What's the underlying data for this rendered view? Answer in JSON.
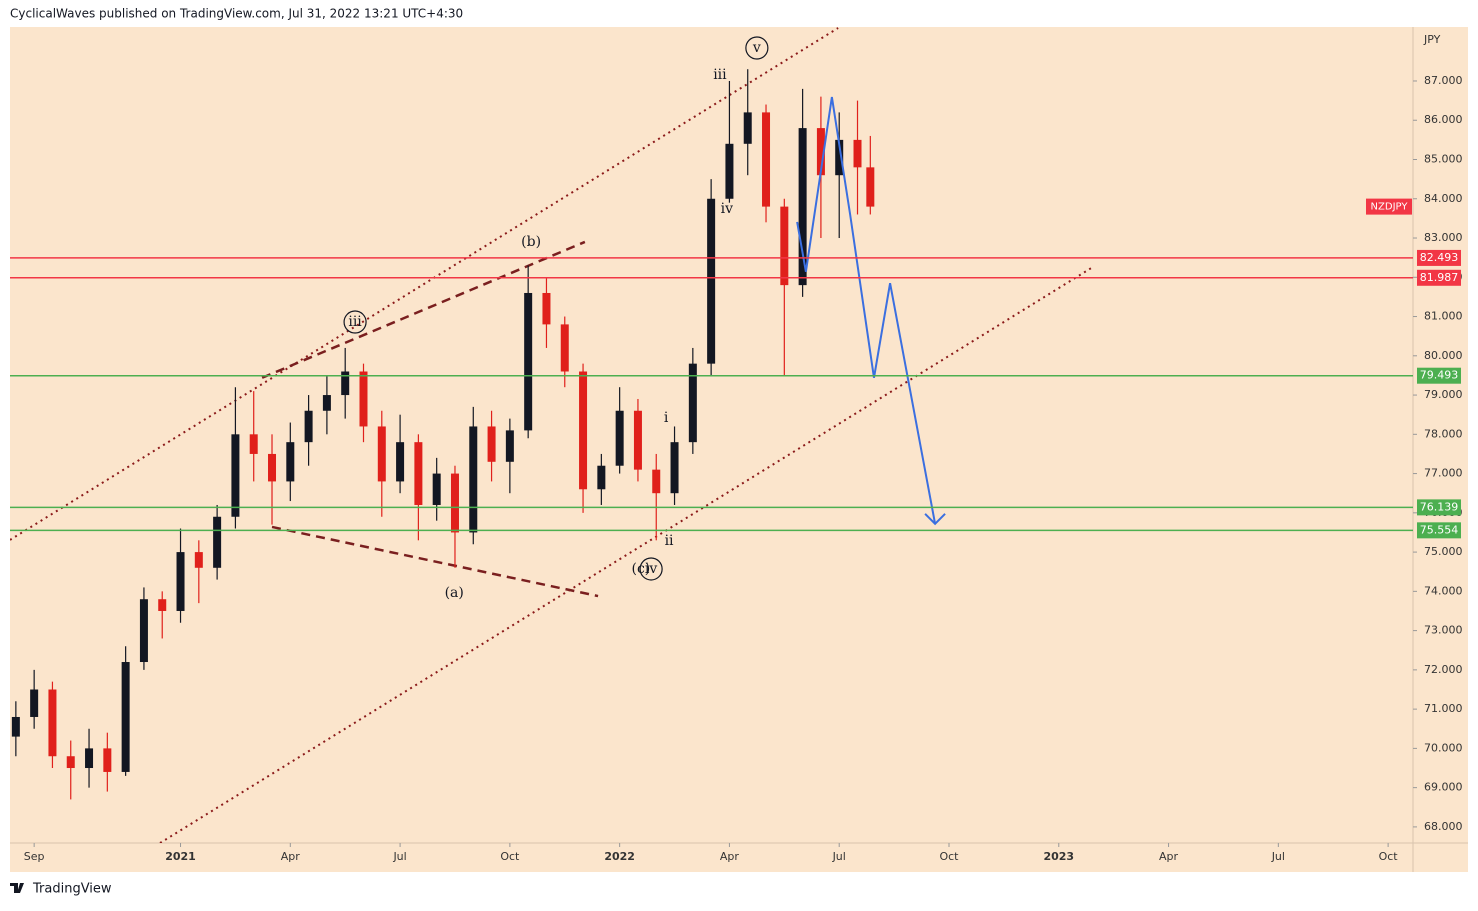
{
  "header": {
    "title": "CyclicalWaves published on TradingView.com, Jul 31, 2022 13:21 UTC+4:30",
    "brand": "TradingView"
  },
  "chart_data": {
    "type": "candlestick",
    "symbol": "NZDJPY",
    "y_unit": "JPY",
    "up_color": "#131722",
    "down_color": "#e0201b",
    "x": [
      -0.5,
      0,
      0.5,
      1,
      1.5,
      2,
      2.5,
      3,
      3.5,
      4,
      4.5,
      5,
      5.5,
      6,
      6.5,
      7,
      7.5,
      8,
      8.5,
      9,
      9.5,
      10,
      10.5,
      11,
      11.5,
      12,
      12.5,
      13,
      13.5,
      14,
      14.5,
      15,
      15.5,
      16,
      16.5,
      17,
      17.5,
      18,
      18.5,
      19,
      19.5,
      20,
      20.5,
      21,
      21.5,
      22,
      22.5,
      22.85
    ],
    "open": [
      70.3,
      70.8,
      71.5,
      69.8,
      69.5,
      70,
      69.4,
      72.2,
      73.8,
      73.5,
      75,
      74.6,
      75.9,
      78,
      77.5,
      76.8,
      77.8,
      78.6,
      79,
      79.6,
      78.2,
      76.8,
      77.8,
      76.2,
      77,
      75.5,
      78.2,
      77.3,
      78.1,
      81.6,
      80.8,
      79.6,
      76.6,
      77.2,
      78.6,
      77.1,
      76.5,
      77.8,
      79.8,
      84,
      85.4,
      86.2,
      83.8,
      81.8,
      85.8,
      84.6,
      85.5,
      84.8
    ],
    "high": [
      71.2,
      72,
      71.7,
      70.2,
      70.5,
      70.4,
      72.6,
      74.1,
      74,
      75.6,
      75.3,
      76.2,
      79.2,
      79.1,
      78,
      78.3,
      79,
      79.5,
      80.2,
      79.8,
      78.6,
      78.5,
      78,
      77.4,
      77.2,
      78.7,
      78.6,
      78.4,
      82.3,
      82,
      81,
      79.8,
      77.5,
      79.2,
      78.9,
      77.5,
      78.2,
      80.2,
      84.5,
      87,
      87.3,
      86.4,
      84,
      86.8,
      86.6,
      86.2,
      86.5,
      85.6
    ],
    "low": [
      69.8,
      70.5,
      69.5,
      68.7,
      69,
      68.9,
      69.3,
      72,
      72.8,
      73.2,
      73.7,
      74.3,
      75.6,
      76.8,
      75.7,
      76.3,
      77.2,
      78,
      78.4,
      77.8,
      75.9,
      76.5,
      75.3,
      75.8,
      74.6,
      75.2,
      76.8,
      76.5,
      77.9,
      80.2,
      79.2,
      76,
      76.2,
      77,
      76.8,
      75.3,
      76.2,
      77.5,
      79.5,
      83.9,
      84.6,
      83.4,
      79.5,
      81.5,
      83,
      83,
      83.6,
      83.6
    ],
    "close": [
      70.8,
      71.5,
      69.8,
      69.5,
      70,
      69.4,
      72.2,
      73.8,
      73.5,
      75,
      74.6,
      75.9,
      78,
      77.5,
      76.8,
      77.8,
      78.6,
      79,
      79.6,
      78.2,
      76.8,
      77.8,
      76.2,
      77,
      75.5,
      78.2,
      77.3,
      78.1,
      81.6,
      80.8,
      79.6,
      76.6,
      77.2,
      78.6,
      77.1,
      76.5,
      77.8,
      79.8,
      84,
      85.4,
      86.2,
      83.8,
      81.8,
      85.8,
      84.6,
      85.5,
      84.8,
      83.8
    ],
    "xlim": [
      -0.66,
      37.68
    ],
    "xticks": [
      {
        "value": 0,
        "label": "Sep"
      },
      {
        "value": 4,
        "label": "2021"
      },
      {
        "value": 7,
        "label": "Apr"
      },
      {
        "value": 10,
        "label": "Jul"
      },
      {
        "value": 13,
        "label": "Oct"
      },
      {
        "value": 16,
        "label": "2022"
      },
      {
        "value": 19,
        "label": "Apr"
      },
      {
        "value": 22,
        "label": "Jul"
      },
      {
        "value": 25,
        "label": "Oct"
      },
      {
        "value": 28,
        "label": "2023"
      },
      {
        "value": 31,
        "label": "Apr"
      },
      {
        "value": 34,
        "label": "Jul"
      },
      {
        "value": 37,
        "label": "Oct"
      }
    ],
    "ylim": [
      67.59,
      88.375
    ],
    "yticks": [
      {
        "value": 68,
        "label": "68.000"
      },
      {
        "value": 69,
        "label": "69.000"
      },
      {
        "value": 70,
        "label": "70.000"
      },
      {
        "value": 71,
        "label": "71.000"
      },
      {
        "value": 72,
        "label": "72.000"
      },
      {
        "value": 73,
        "label": "73.000"
      },
      {
        "value": 74,
        "label": "74.000"
      },
      {
        "value": 75,
        "label": "75.000"
      },
      {
        "value": 76,
        "label": "76.000"
      },
      {
        "value": 77,
        "label": "77.000"
      },
      {
        "value": 78,
        "label": "78.000"
      },
      {
        "value": 79,
        "label": "79.000"
      },
      {
        "value": 80,
        "label": "80.000"
      },
      {
        "value": 81,
        "label": "81.000"
      },
      {
        "value": 82,
        "label": "82.000"
      },
      {
        "value": 83,
        "label": "83.000"
      },
      {
        "value": 84,
        "label": "84.000"
      },
      {
        "value": 85,
        "label": "85.000"
      },
      {
        "value": 86,
        "label": "86.000"
      },
      {
        "value": 87,
        "label": "87.000"
      }
    ],
    "levels": [
      {
        "value": 82.493,
        "color": "#f23645"
      },
      {
        "value": 81.987,
        "color": "#f23645"
      },
      {
        "value": 79.493,
        "color": "#4caf50"
      },
      {
        "value": 76.139,
        "color": "#4caf50"
      },
      {
        "value": 75.554,
        "color": "#4caf50"
      }
    ],
    "trendlines": [
      {
        "x": [
          -0.66,
          21.97
        ],
        "y": [
          75.31,
          88.35
        ],
        "style": "dotted",
        "color": "#8b1a1a"
      },
      {
        "x": [
          3.44,
          28.93
        ],
        "y": [
          67.59,
          82.26
        ],
        "style": "dotted",
        "color": "#8b1a1a"
      },
      {
        "x": [
          6.23,
          15.05
        ],
        "y": [
          79.44,
          82.9
        ],
        "style": "dashed",
        "color": "#7a1f1f"
      },
      {
        "x": [
          6.5,
          15.41
        ],
        "y": [
          75.64,
          73.88
        ],
        "style": "dashed",
        "color": "#7a1f1f"
      }
    ],
    "projection": {
      "color": "#3b6fe0",
      "x": [
        20.85,
        21.09,
        21.8,
        22.3,
        22.95,
        23.39,
        24.62
      ],
      "y": [
        83.41,
        82.14,
        86.59,
        83.59,
        79.44,
        81.85,
        75.72
      ]
    },
    "annotations": [
      {
        "text": "iii",
        "x": 8.77,
        "y": 80.86,
        "circled": true
      },
      {
        "text": "(b)",
        "x": 13.58,
        "y": 82.9,
        "circled": false
      },
      {
        "text": "iii",
        "x": 18.74,
        "y": 87.15,
        "circled": false
      },
      {
        "text": "v",
        "x": 19.75,
        "y": 87.84,
        "circled": true
      },
      {
        "text": "iv",
        "x": 18.93,
        "y": 83.74,
        "circled": false
      },
      {
        "text": "(a)",
        "x": 11.48,
        "y": 73.96,
        "circled": false
      },
      {
        "text": "i",
        "x": 17.27,
        "y": 78.42,
        "circled": false
      },
      {
        "text": "ii",
        "x": 17.35,
        "y": 75.28,
        "circled": false
      },
      {
        "text": "(c)",
        "x": 16.58,
        "y": 74.57,
        "circled": false
      },
      {
        "text": "iv",
        "x": 16.86,
        "y": 74.57,
        "circled": true
      }
    ]
  }
}
